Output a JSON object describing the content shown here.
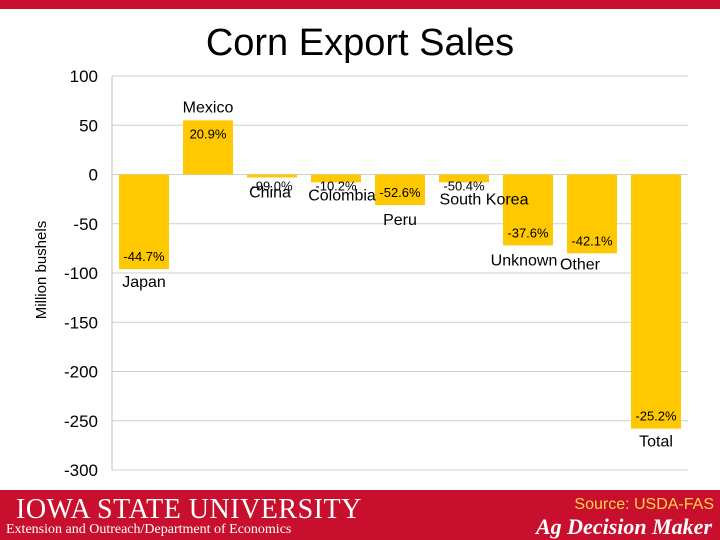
{
  "title": "Corn Export Sales",
  "footer": {
    "logo_text": "IOWA STATE UNIVERSITY",
    "department": "Extension and Outreach/Department of Economics",
    "source": "Source: USDA-FAS",
    "brand": "Ag Decision Maker"
  },
  "colors": {
    "bar": "#ffc800",
    "accent": "#c8102e",
    "grid": "#cfcfcf"
  },
  "chart_data": {
    "type": "bar",
    "title": "Corn Export Sales",
    "ylabel": "Million bushels",
    "xlabel": "",
    "ylim": [
      -300,
      100
    ],
    "yticks": [
      100,
      50,
      0,
      -50,
      -100,
      -150,
      -200,
      -250,
      -300
    ],
    "grid": true,
    "categories": [
      "Japan",
      "Mexico",
      "China",
      "Colombia",
      "Peru",
      "South Korea",
      "Unknown",
      "Other",
      "Total"
    ],
    "values": [
      -96,
      55,
      -3,
      -8,
      -31,
      -8,
      -72,
      -80,
      -258
    ],
    "data_labels": [
      "-44.7%",
      "20.9%",
      "-99.0%",
      "-10.2%",
      "-52.6%",
      "-50.4%",
      "-37.6%",
      "-42.1%",
      "-25.2%"
    ]
  }
}
